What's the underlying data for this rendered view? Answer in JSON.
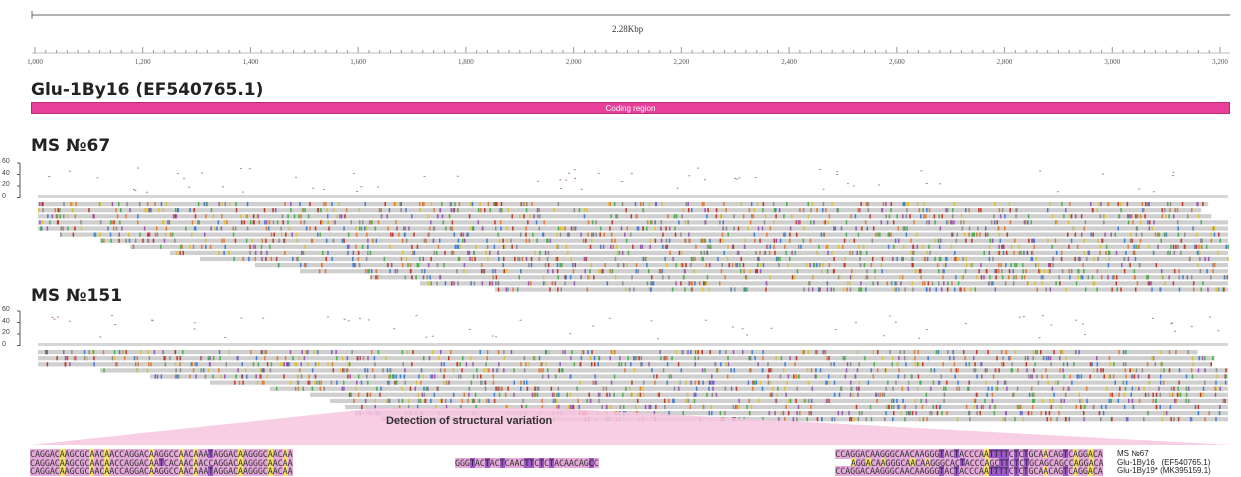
{
  "ruler": {
    "span_label": "2.28Kbp",
    "ticks": [
      "1,000",
      "1,200",
      "1,400",
      "1,600",
      "1,800",
      "2,000",
      "2,200",
      "2,400",
      "2,600",
      "2,800",
      "3,000",
      "3,200"
    ]
  },
  "reference_track": {
    "title": "Glu-1By16 (EF540765.1)",
    "feature_label": "Coding region",
    "feature_color": "#e8409a"
  },
  "samples": [
    {
      "title": "MS №67",
      "coverage_axis": [
        "60",
        "40",
        "20",
        "0"
      ]
    },
    {
      "title": "MS №151",
      "coverage_axis": [
        "60",
        "40",
        "20",
        "0"
      ]
    }
  ],
  "sv_caption": "Detection of structural variation",
  "alignment": {
    "rows": [
      {
        "seq_left": "CAGGACAAGCGCAACAACCAGGACAAGGCCAACAAATAGGACAAGGGCAACAA",
        "insert": "",
        "seq_right": "CCAGGACAAGGGCAACAAGGGTACTACCCAATTTTCTCTGCAACAGTCAGGACA",
        "label": "MS №67"
      },
      {
        "seq_left": "CAGGACAAGCGCAACAACCAGGACAATCACAACAACCAGGACAAGGGCAACAA",
        "insert": "GGGTACTACTCAACTTCTCTACAACAGCC",
        "seq_right": "AGGACAAGGGCAACAAGGGCACTACCCAGCTTCTCTGCAGCAGCCAGGACA",
        "label": "Glu-1By16   (EF540765.1)"
      },
      {
        "seq_left": "CAGGACAAGCGCAACAACCAGGACAAGGCCAACAAATAGGACAAGGGCAACAA",
        "insert": "",
        "seq_right": "CCAGGACAAGGGCAACAAGGGTACTACCCAATTTTCTCTGCAACAGTCAGGACA",
        "label": "Glu-1By19* (MK395159.1)"
      }
    ]
  },
  "colors": {
    "read": "#cfcfcf",
    "mismatch_palette": [
      "#e07b39",
      "#4caf50",
      "#3f7fd6",
      "#d8c23a",
      "#9b59b6",
      "#c0392b",
      "#8e8e8e"
    ],
    "sv_highlight": "#f7c6df",
    "base_highlight": "#e4a8d9",
    "base_purple": "#9c57c9",
    "base_yellow": "#f3e16a"
  }
}
